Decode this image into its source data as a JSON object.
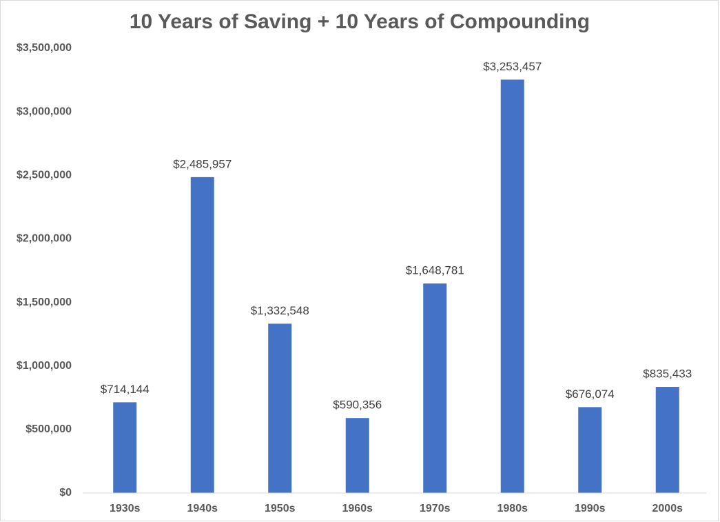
{
  "chart_data": {
    "type": "bar",
    "title": "10 Years of Saving + 10 Years of Compounding",
    "categories": [
      "1930s",
      "1940s",
      "1950s",
      "1960s",
      "1970s",
      "1980s",
      "1990s",
      "2000s"
    ],
    "values": [
      714144,
      2485957,
      1332548,
      590356,
      1648781,
      3253457,
      676074,
      835433
    ],
    "value_labels": [
      "$714,144",
      "$2,485,957",
      "$1,332,548",
      "$590,356",
      "$1,648,781",
      "$3,253,457",
      "$676,074",
      "$835,433"
    ],
    "color": "#4472c4",
    "ylim": [
      0,
      3500000
    ],
    "yticks": [
      {
        "value": 0,
        "label": "$0"
      },
      {
        "value": 500000,
        "label": "$500,000"
      },
      {
        "value": 1000000,
        "label": "$1,000,000"
      },
      {
        "value": 1500000,
        "label": "$1,500,000"
      },
      {
        "value": 2000000,
        "label": "$2,000,000"
      },
      {
        "value": 2500000,
        "label": "$2,500,000"
      },
      {
        "value": 3000000,
        "label": "$3,000,000"
      },
      {
        "value": 3500000,
        "label": "$3,500,000"
      }
    ],
    "grid": false
  }
}
